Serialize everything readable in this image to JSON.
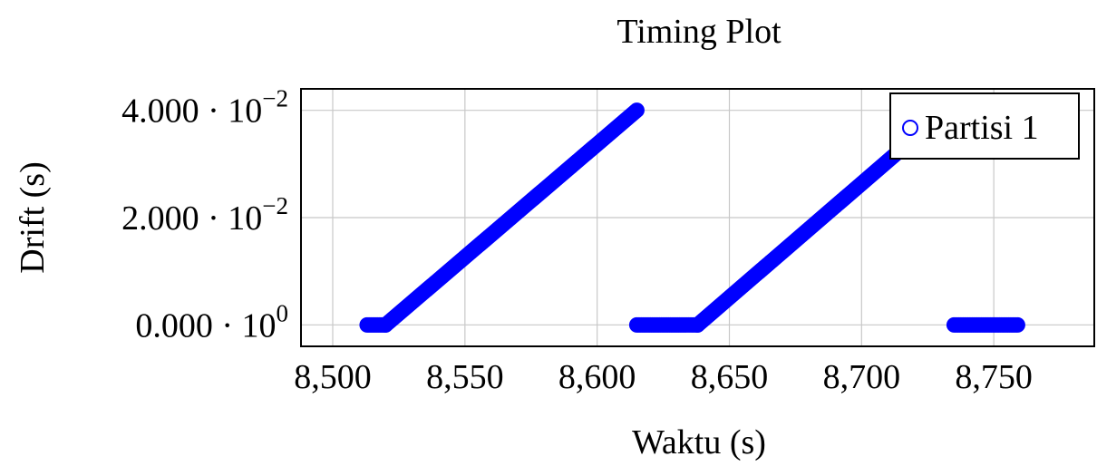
{
  "chart_data": {
    "type": "scatter",
    "title": "Timing Plot",
    "xlabel": "Waktu (s)",
    "ylabel": "Drift (s)",
    "xlim": [
      8488,
      8788
    ],
    "ylim": [
      -0.004,
      0.044
    ],
    "grid": true,
    "legend_position": "top-right",
    "x_ticks": [
      {
        "value": 8500,
        "label": "8,500"
      },
      {
        "value": 8550,
        "label": "8,550"
      },
      {
        "value": 8600,
        "label": "8,600"
      },
      {
        "value": 8650,
        "label": "8,650"
      },
      {
        "value": 8700,
        "label": "8,700"
      },
      {
        "value": 8750,
        "label": "8,750"
      }
    ],
    "y_ticks": [
      {
        "value": 0.0,
        "mantissa": "0.000 · 10",
        "exponent": "0"
      },
      {
        "value": 0.02,
        "mantissa": "2.000 · 10",
        "exponent": "−2"
      },
      {
        "value": 0.04,
        "mantissa": "4.000 · 10",
        "exponent": "−2"
      }
    ],
    "series": [
      {
        "name": "Partisi 1",
        "color": "#0000ff",
        "marker": "circle",
        "segments": [
          {
            "start": [
              8513,
              0.0
            ],
            "end": [
              8520,
              0.0
            ]
          },
          {
            "start": [
              8520,
              0.0
            ],
            "end": [
              8615,
              0.04
            ]
          },
          {
            "start": [
              8615,
              0.0
            ],
            "end": [
              8638,
              0.0
            ]
          },
          {
            "start": [
              8638,
              0.0
            ],
            "end": [
              8718,
              0.034
            ]
          },
          {
            "start": [
              8735,
              0.0
            ],
            "end": [
              8759,
              0.0
            ]
          }
        ]
      }
    ]
  }
}
